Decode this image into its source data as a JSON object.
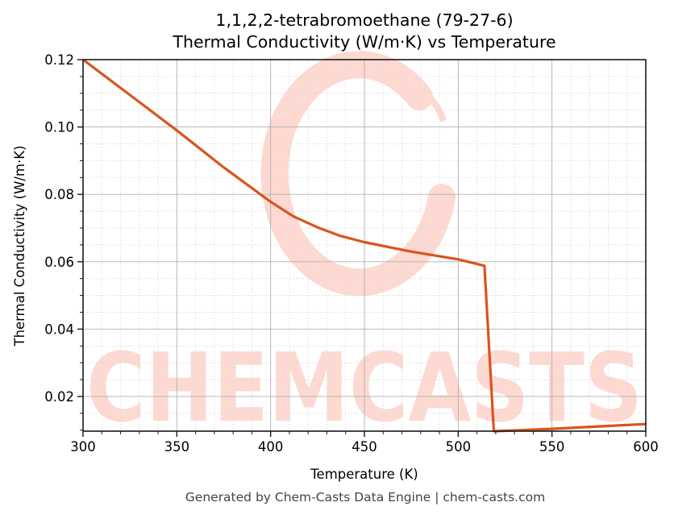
{
  "title_line1": "1,1,2,2-tetrabromoethane (79-27-6)",
  "title_line2": "Thermal Conductivity (W/m·K) vs Temperature",
  "footer": "Generated by Chem-Casts Data Engine | chem-casts.com",
  "watermark": "CHEMCASTS",
  "colors": {
    "line": "#d9541e",
    "watermark": "#fdd9d2",
    "grid_major": "#b0b0b0",
    "grid_minor": "#dddddd"
  },
  "chart_data": {
    "type": "line",
    "title": "1,1,2,2-tetrabromoethane (79-27-6) Thermal Conductivity (W/m·K) vs Temperature",
    "xlabel": "Temperature (K)",
    "ylabel": "Thermal Conductivity (W/m·K)",
    "xlim": [
      300,
      600
    ],
    "ylim": [
      0.0097,
      0.12
    ],
    "xticks": [
      300,
      350,
      400,
      450,
      500,
      550,
      600
    ],
    "xtick_labels": [
      "300",
      "350",
      "400",
      "450",
      "500",
      "550",
      "600"
    ],
    "yticks": [
      0.02,
      0.04,
      0.06,
      0.08,
      0.1,
      0.12
    ],
    "ytick_labels": [
      "0.02",
      "0.04",
      "0.06",
      "0.08",
      "0.10",
      "0.12"
    ],
    "grid": true,
    "legend": null,
    "series": [
      {
        "name": "Thermal Conductivity",
        "x": [
          300,
          325,
          350,
          375,
          400,
          412,
          425,
          437,
          450,
          475,
          500,
          514,
          519,
          520,
          550,
          575,
          600
        ],
        "y": [
          0.12,
          0.1095,
          0.099,
          0.088,
          0.0778,
          0.0735,
          0.0702,
          0.0677,
          0.0658,
          0.063,
          0.0607,
          0.0588,
          0.0097,
          0.0097,
          0.0104,
          0.0111,
          0.0118
        ]
      }
    ]
  }
}
